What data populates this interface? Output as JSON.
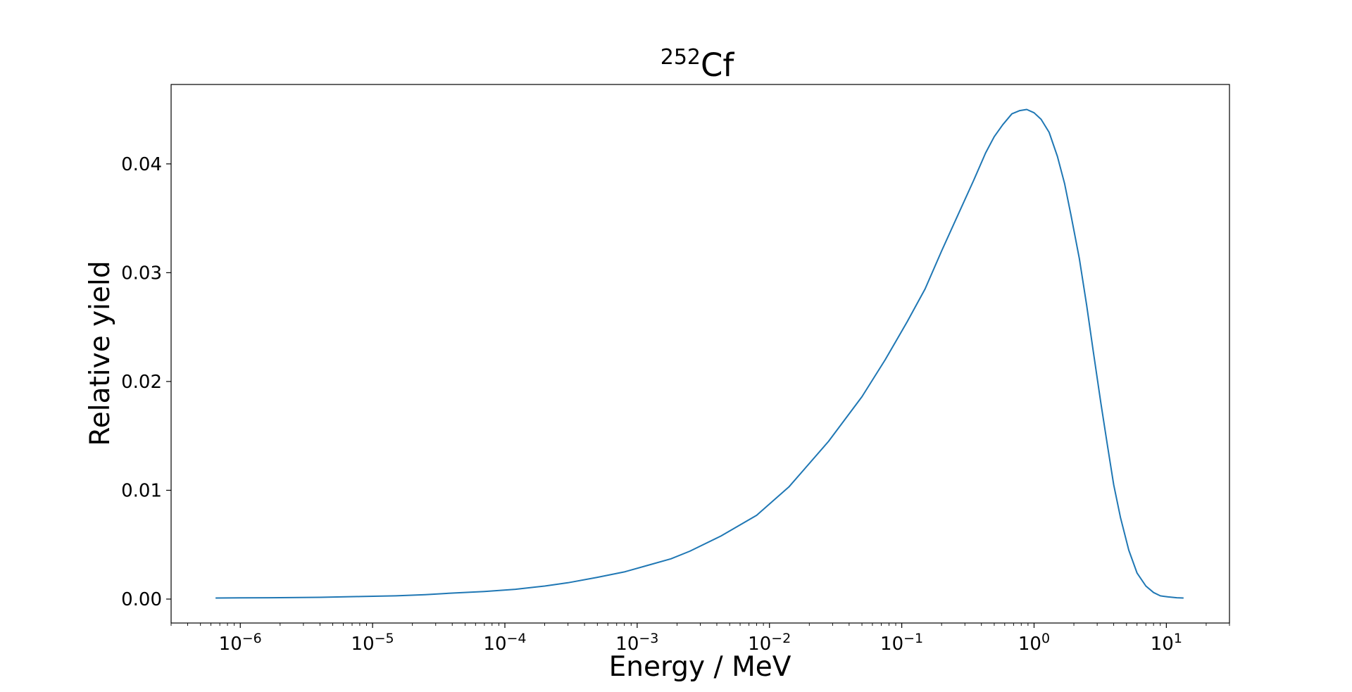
{
  "chart_data": {
    "type": "line",
    "title": {
      "superscript": "252",
      "text": "Cf"
    },
    "xlabel": "Energy / MeV",
    "ylabel": "Relative yield",
    "x_scale": "log",
    "xlim": [
      3e-07,
      30
    ],
    "ylim": [
      -0.0022,
      0.0473
    ],
    "x_ticks": [
      {
        "base": "10",
        "exp": "−6"
      },
      {
        "base": "10",
        "exp": "−5"
      },
      {
        "base": "10",
        "exp": "−4"
      },
      {
        "base": "10",
        "exp": "−3"
      },
      {
        "base": "10",
        "exp": "−2"
      },
      {
        "base": "10",
        "exp": "−1"
      },
      {
        "base": "10",
        "exp": "0"
      },
      {
        "base": "10",
        "exp": "1"
      }
    ],
    "y_ticks": [
      "0.00",
      "0.01",
      "0.02",
      "0.03",
      "0.04"
    ],
    "grid": false,
    "line_color": "#1f77b4",
    "series": [
      {
        "x": [
          6.5e-07,
          1e-06,
          2e-06,
          4e-06,
          8e-06,
          1.5e-05,
          2.5e-05,
          4e-05,
          7e-05,
          0.00012,
          0.0002,
          0.0003,
          0.0005,
          0.0008,
          0.0012,
          0.0018,
          0.0025,
          0.0043,
          0.008,
          0.014,
          0.028,
          0.05,
          0.075,
          0.11,
          0.15,
          0.2,
          0.27,
          0.35,
          0.43,
          0.5,
          0.58,
          0.68,
          0.78,
          0.88,
          1.0,
          1.13,
          1.3,
          1.5,
          1.7,
          1.9,
          2.2,
          2.5,
          2.8,
          3.2,
          3.6,
          4.0,
          4.5,
          5.2,
          6.0,
          7.0,
          8.0,
          9.0,
          10.3,
          12.0,
          13.5
        ],
        "y": [
          0.0001,
          0.00011,
          0.00013,
          0.00016,
          0.00023,
          0.0003,
          0.0004,
          0.00055,
          0.0007,
          0.0009,
          0.0012,
          0.0015,
          0.002,
          0.0025,
          0.0031,
          0.0037,
          0.0044,
          0.0058,
          0.0077,
          0.0103,
          0.0145,
          0.0186,
          0.022,
          0.0255,
          0.0285,
          0.032,
          0.0355,
          0.0385,
          0.041,
          0.0425,
          0.0436,
          0.0446,
          0.0449,
          0.045,
          0.0447,
          0.0441,
          0.0429,
          0.0407,
          0.0382,
          0.0353,
          0.0313,
          0.027,
          0.0228,
          0.018,
          0.014,
          0.0105,
          0.0075,
          0.0045,
          0.0024,
          0.0012,
          0.0006,
          0.0003,
          0.0002,
          0.00012,
          0.0001
        ]
      }
    ]
  }
}
